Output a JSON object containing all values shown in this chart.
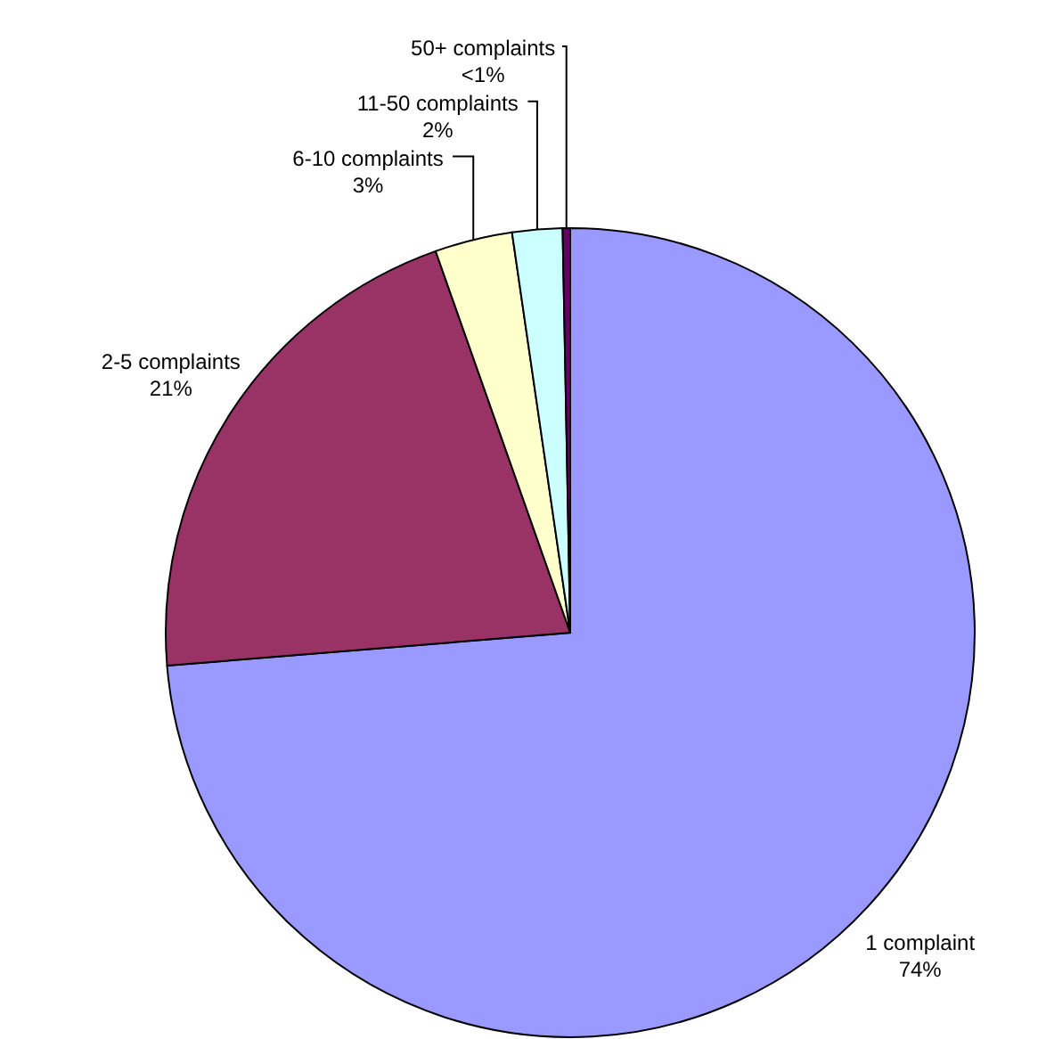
{
  "chart_data": {
    "type": "pie",
    "categories": [
      "1 complaint",
      "2-5 complaints",
      "6-10 complaints",
      "11-50 complaints",
      "50+ complaints"
    ],
    "values": [
      73.7,
      20.9,
      3.1,
      2.0,
      0.3
    ],
    "colors": [
      "#9999ff",
      "#993366",
      "#ffffcc",
      "#ccffff",
      "#660066"
    ],
    "value_labels": [
      "74%",
      "21%",
      "3%",
      "2%",
      "<1%"
    ]
  }
}
